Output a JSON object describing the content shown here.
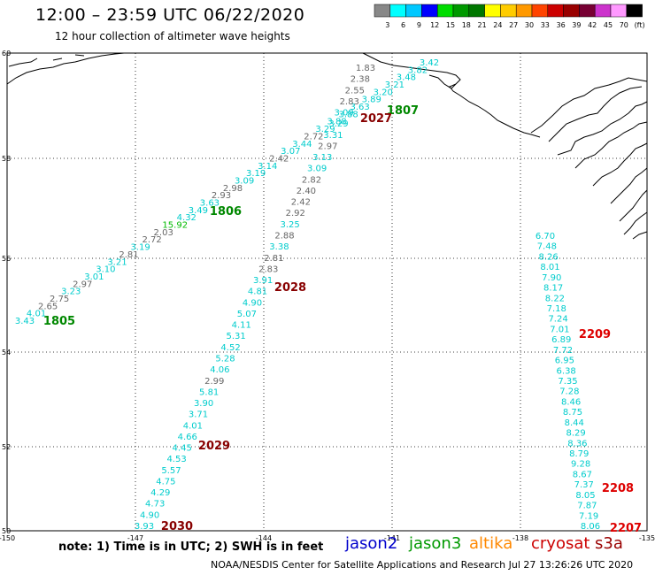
{
  "header": {
    "title": "12:00 – 23:59 UTC 06/22/2020",
    "subtitle": "12 hour collection of altimeter wave heights"
  },
  "color_scale": {
    "labels": [
      "3",
      "6",
      "9",
      "12",
      "15",
      "18",
      "21",
      "24",
      "27",
      "30",
      "33",
      "36",
      "39",
      "42",
      "45",
      "70",
      "(ft)"
    ],
    "colors": [
      "#888888",
      "#00ffff",
      "#00c8ff",
      "#0000ff",
      "#00dd00",
      "#009900",
      "#007700",
      "#ffff00",
      "#ffcc00",
      "#ff9900",
      "#ff4400",
      "#cc0000",
      "#990000",
      "#770033",
      "#cc33cc",
      "#ff99ff",
      "#000000"
    ]
  },
  "map": {
    "lon_ticks": [
      "-150",
      "-147",
      "-144",
      "-141",
      "-138",
      "-135"
    ],
    "lat_ticks": [
      "60",
      "58",
      "56",
      "54",
      "52",
      "50"
    ]
  },
  "passes": [
    {
      "label": "1805",
      "color": "#008800"
    },
    {
      "label": "1806",
      "color": "#008800"
    },
    {
      "label": "1807",
      "color": "#008800"
    },
    {
      "label": "2027",
      "color": "#880000"
    },
    {
      "label": "2028",
      "color": "#880000"
    },
    {
      "label": "2029",
      "color": "#880000"
    },
    {
      "label": "2030",
      "color": "#880000"
    },
    {
      "label": "2207",
      "color": "#dd0000"
    },
    {
      "label": "2208",
      "color": "#dd0000"
    },
    {
      "label": "2209",
      "color": "#dd0000"
    }
  ],
  "track_jason3": {
    "values": [
      "3.43",
      "4.01",
      "2.65",
      "2.75",
      "3.23",
      "2.97",
      "3.01",
      "3.10",
      "3.21",
      "2.81",
      "3.19",
      "2.72",
      "2.03",
      "15.92",
      "4.32",
      "3.49",
      "3.63",
      "2.93",
      "2.98",
      "3.09",
      "3.19",
      "3.14",
      "2.42",
      "3.07",
      "3.44",
      "2.72",
      "3.29",
      "3.88",
      "3.88",
      "3.63",
      "3.89",
      "3.20",
      "3.21",
      "3.48",
      "3.82",
      "3.42"
    ]
  },
  "track_cryosat_mid": {
    "values": [
      "1.83",
      "2.38",
      "2.55",
      "2.83",
      "3.09",
      "3.29",
      "3.31",
      "2.97",
      "3.13",
      "3.09",
      "2.82",
      "2.40",
      "2.42",
      "2.92",
      "3.25",
      "2.88",
      "3.38",
      "2.81",
      "2.83",
      "3.91",
      "4.81",
      "4.90",
      "5.07",
      "4.11",
      "5.31",
      "4.52",
      "5.28",
      "4.06",
      "2.99",
      "5.81",
      "3.90",
      "3.71",
      "4.01",
      "4.66",
      "4.45",
      "4.53",
      "5.57",
      "4.75",
      "4.29",
      "4.73",
      "4.90",
      "3.93"
    ]
  },
  "track_s3a": {
    "values": [
      "6.70",
      "7.48",
      "8.26",
      "8.01",
      "7.90",
      "8.17",
      "8.22",
      "7.18",
      "7.24",
      "7.01",
      "6.89",
      "7.72",
      "6.95",
      "6.38",
      "7.35",
      "7.28",
      "8.46",
      "8.75",
      "8.44",
      "8.29",
      "8.36",
      "8.79",
      "9.28",
      "8.67",
      "7.37",
      "8.05",
      "7.87",
      "7.19",
      "8.06"
    ]
  },
  "footer": {
    "note": "note: 1) Time is in UTC; 2) SWH is in feet",
    "legend": [
      {
        "label": "jason2",
        "color": "#0000cc"
      },
      {
        "label": "jason3",
        "color": "#009900"
      },
      {
        "label": "altika",
        "color": "#ff8800"
      },
      {
        "label": "cryosat",
        "color": "#cc0000"
      },
      {
        "label": "s3a",
        "color": "#990000"
      }
    ],
    "credit": "NOAA/NESDIS Center for Satellite Applications and Research    Jul 27 13:26:26 UTC 2020"
  }
}
